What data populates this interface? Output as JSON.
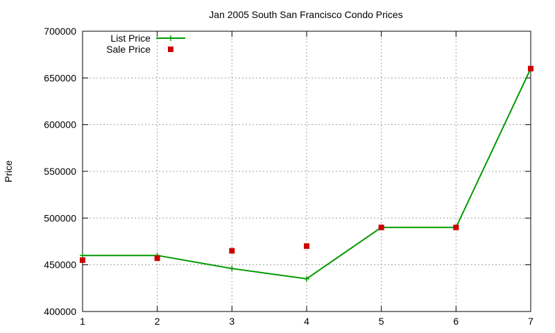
{
  "chart_data": {
    "type": "line",
    "title": "Jan 2005 South San Francisco Condo Prices",
    "xlabel": "",
    "ylabel": "Price",
    "xlim": [
      1,
      7
    ],
    "ylim": [
      400000,
      700000
    ],
    "x_ticks": [
      1,
      2,
      3,
      4,
      5,
      6,
      7
    ],
    "y_ticks": [
      400000,
      450000,
      500000,
      550000,
      600000,
      650000,
      700000
    ],
    "grid": true,
    "legend_position": "top-left",
    "series": [
      {
        "name": "List Price",
        "style": "line-with-plus",
        "color": "#009900",
        "x": [
          1,
          2,
          3,
          4,
          5,
          6,
          7
        ],
        "y": [
          460000,
          460000,
          446000,
          435000,
          490000,
          490000,
          660000
        ]
      },
      {
        "name": "Sale Price",
        "style": "square-points",
        "color": "#cc0000",
        "x": [
          1,
          2,
          3,
          4,
          5,
          6,
          7
        ],
        "y": [
          455000,
          457000,
          465000,
          470000,
          490000,
          490000,
          660000
        ]
      }
    ]
  }
}
